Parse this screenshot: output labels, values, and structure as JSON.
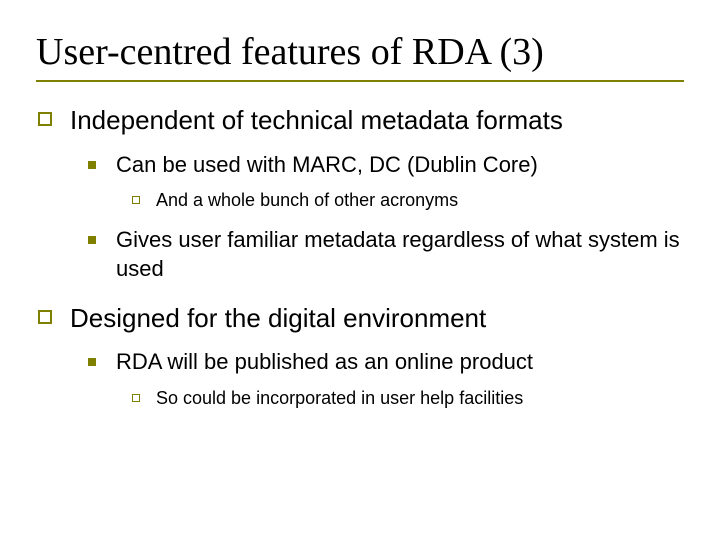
{
  "colors": {
    "accent": "#808000",
    "text": "#000000",
    "background": "#ffffff"
  },
  "typography": {
    "title_font": "Times New Roman",
    "body_font": "Verdana",
    "title_size_pt": 38,
    "lvl1_size_pt": 26,
    "lvl2_size_pt": 22,
    "lvl3_size_pt": 18
  },
  "title": "User-centred features of RDA (3)",
  "bullets": {
    "lvl1_0": "Independent of technical metadata formats",
    "lvl1_0_lvl2_0": "Can be used with MARC, DC (Dublin Core)",
    "lvl1_0_lvl2_0_lvl3_0": "And a whole bunch of other acronyms",
    "lvl1_0_lvl2_1": "Gives user familiar metadata regardless of what system is used",
    "lvl1_1": "Designed for the digital environment",
    "lvl1_1_lvl2_0": "RDA will be published as an online product",
    "lvl1_1_lvl2_0_lvl3_0": "So could be incorporated in user help facilities"
  }
}
